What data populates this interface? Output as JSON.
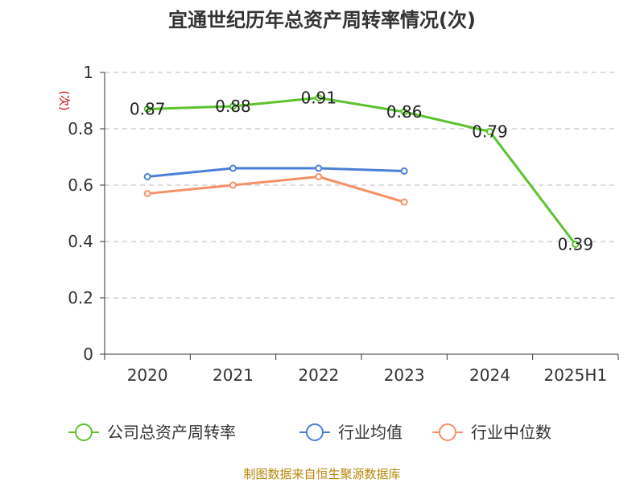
{
  "chart_data": {
    "type": "line",
    "title": "宜通世纪历年总资产周转率情况(次)",
    "ylabel": "(次)",
    "xlabel": "",
    "categories": [
      "2020",
      "2021",
      "2022",
      "2023",
      "2024",
      "2025H1"
    ],
    "ylim": [
      0,
      1
    ],
    "yticks": [
      "0",
      "0.2",
      "0.4",
      "0.6",
      "0.8",
      "1"
    ],
    "grid": true,
    "legend_position": "bottom",
    "series": [
      {
        "name": "公司总资产周转率",
        "color": "#5cc22e",
        "values": [
          0.87,
          0.88,
          0.91,
          0.86,
          0.79,
          0.39
        ],
        "labels": [
          "0.87",
          "0.88",
          "0.91",
          "0.86",
          "0.79",
          "0.39"
        ]
      },
      {
        "name": "行业均值",
        "color": "#4a7fd6",
        "values": [
          0.63,
          0.66,
          0.66,
          0.65,
          null,
          null
        ]
      },
      {
        "name": "行业中位数",
        "color": "#f59167",
        "values": [
          0.57,
          0.6,
          0.63,
          0.54,
          null,
          null
        ]
      }
    ],
    "source": "制图数据来自恒生聚源数据库"
  }
}
